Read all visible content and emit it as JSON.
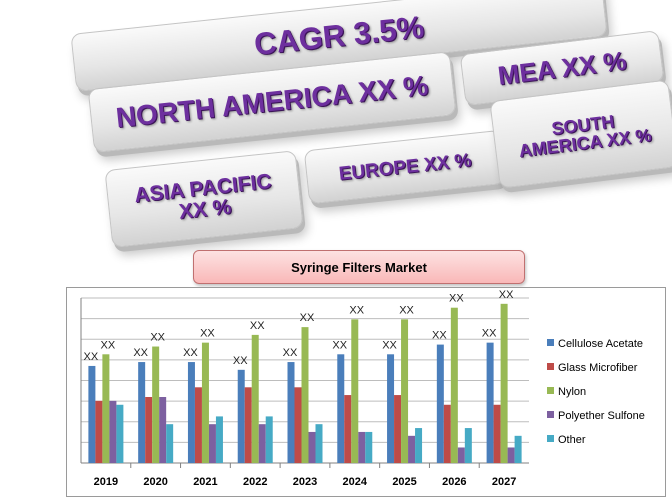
{
  "keys": {
    "cagr": "CAGR 3.5%",
    "north_america": "NORTH AMERICA XX %",
    "mea": "MEA XX %",
    "asia_pacific_line1": "ASIA PACIFIC",
    "asia_pacific_line2": "XX %",
    "europe": "EUROPE XX %",
    "south_america_line1": "SOUTH",
    "south_america_line2": "AMERICA XX %"
  },
  "chart_data": {
    "type": "bar",
    "title": "Syringe Filters Market",
    "categories": [
      "2019",
      "2020",
      "2021",
      "2022",
      "2023",
      "2024",
      "2025",
      "2026",
      "2027"
    ],
    "ylim": [
      0,
      85
    ],
    "grid": true,
    "legend_position": "right",
    "series": [
      {
        "name": "Cellulose Acetate",
        "color": "#4a7ebb",
        "values": [
          50,
          52,
          52,
          48,
          52,
          56,
          56,
          61,
          62
        ]
      },
      {
        "name": "Glass Microfiber",
        "color": "#be4b48",
        "values": [
          32,
          34,
          39,
          39,
          39,
          35,
          35,
          30,
          30
        ]
      },
      {
        "name": "Nylon",
        "color": "#98b954",
        "values": [
          56,
          60,
          62,
          66,
          70,
          74,
          74,
          80,
          82
        ]
      },
      {
        "name": "Polyether Sulfone",
        "color": "#7d60a0",
        "values": [
          32,
          34,
          20,
          20,
          16,
          16,
          14,
          8,
          8
        ]
      },
      {
        "name": "Other",
        "color": "#46aac5",
        "values": [
          30,
          20,
          24,
          24,
          20,
          16,
          18,
          18,
          14
        ]
      }
    ],
    "annotations": [
      "XX",
      "XX"
    ]
  }
}
